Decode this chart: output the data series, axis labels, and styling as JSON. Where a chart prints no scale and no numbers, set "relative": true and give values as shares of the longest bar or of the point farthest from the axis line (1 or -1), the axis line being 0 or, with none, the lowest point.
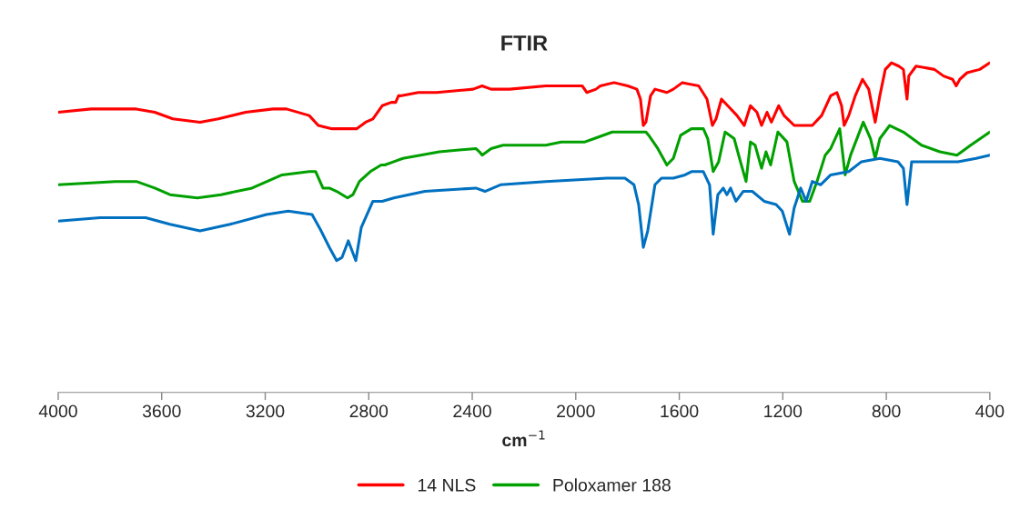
{
  "chart_data": {
    "type": "line",
    "title": "FTIR",
    "xlabel": "cm$^{−1}$",
    "relative": true,
    "xlim": [
      4000,
      400
    ],
    "xticks": [
      4000,
      3600,
      3200,
      2800,
      2400,
      2000,
      1600,
      1200,
      800,
      400
    ],
    "grid": false,
    "legend": "bottom",
    "marker": "none",
    "line_style": "solid",
    "series": [
      {
        "name": "14 NLS",
        "color": "#ff0000",
        "x": [
          4000,
          3873,
          3698,
          3627,
          3557,
          3452,
          3381,
          3276,
          3170,
          3118,
          3030,
          2995,
          2942,
          2847,
          2812,
          2784,
          2748,
          2713,
          2696,
          2685,
          2678,
          2608,
          2537,
          2397,
          2362,
          2327,
          2256,
          2116,
          1975,
          1957,
          1922,
          1905,
          1852,
          1799,
          1764,
          1750,
          1739,
          1729,
          1711,
          1694,
          1648,
          1623,
          1588,
          1525,
          1493,
          1472,
          1458,
          1437,
          1413,
          1377,
          1349,
          1325,
          1300,
          1282,
          1261,
          1244,
          1216,
          1195,
          1156,
          1086,
          1050,
          1015,
          991,
          973,
          963,
          945,
          920,
          892,
          868,
          843,
          825,
          804,
          780,
          752,
          734,
          720,
          713,
          685,
          614,
          579,
          544,
          530,
          516,
          488,
          439,
          400
        ],
        "values": [
          0.85,
          0.86,
          0.86,
          0.85,
          0.83,
          0.82,
          0.83,
          0.85,
          0.86,
          0.86,
          0.84,
          0.81,
          0.8,
          0.8,
          0.82,
          0.83,
          0.87,
          0.88,
          0.88,
          0.9,
          0.9,
          0.91,
          0.91,
          0.92,
          0.93,
          0.92,
          0.92,
          0.93,
          0.93,
          0.91,
          0.92,
          0.93,
          0.94,
          0.93,
          0.92,
          0.89,
          0.81,
          0.82,
          0.9,
          0.92,
          0.91,
          0.92,
          0.94,
          0.93,
          0.89,
          0.81,
          0.83,
          0.89,
          0.87,
          0.84,
          0.81,
          0.87,
          0.85,
          0.81,
          0.85,
          0.82,
          0.87,
          0.84,
          0.81,
          0.81,
          0.84,
          0.9,
          0.91,
          0.87,
          0.81,
          0.84,
          0.9,
          0.95,
          0.92,
          0.82,
          0.9,
          0.98,
          1.0,
          0.99,
          0.98,
          0.89,
          0.96,
          0.99,
          0.98,
          0.96,
          0.95,
          0.93,
          0.95,
          0.97,
          0.98,
          1.0
        ]
      },
      {
        "name": "Poloxamer 188",
        "color": "#00a000",
        "x": [
          4000,
          3779,
          3698,
          3627,
          3568,
          3462,
          3371,
          3251,
          3135,
          3030,
          3005,
          2977,
          2952,
          2924,
          2882,
          2861,
          2836,
          2794,
          2752,
          2738,
          2703,
          2668,
          2527,
          2386,
          2372,
          2362,
          2327,
          2281,
          2116,
          2056,
          1965,
          1929,
          1859,
          1729,
          1718,
          1683,
          1648,
          1623,
          1595,
          1553,
          1507,
          1490,
          1469,
          1448,
          1423,
          1388,
          1360,
          1342,
          1325,
          1307,
          1282,
          1265,
          1247,
          1219,
          1184,
          1156,
          1124,
          1096,
          1068,
          1036,
          1015,
          980,
          959,
          938,
          889,
          861,
          843,
          825,
          787,
          734,
          664,
          593,
          527,
          474,
          400
        ],
        "values": [
          0.63,
          0.64,
          0.64,
          0.62,
          0.6,
          0.59,
          0.6,
          0.62,
          0.66,
          0.67,
          0.67,
          0.62,
          0.62,
          0.61,
          0.59,
          0.6,
          0.64,
          0.67,
          0.69,
          0.69,
          0.7,
          0.71,
          0.73,
          0.74,
          0.73,
          0.72,
          0.74,
          0.75,
          0.75,
          0.76,
          0.76,
          0.77,
          0.79,
          0.79,
          0.78,
          0.74,
          0.69,
          0.71,
          0.78,
          0.8,
          0.8,
          0.77,
          0.67,
          0.7,
          0.79,
          0.77,
          0.69,
          0.64,
          0.76,
          0.75,
          0.68,
          0.73,
          0.69,
          0.79,
          0.76,
          0.64,
          0.58,
          0.58,
          0.64,
          0.72,
          0.74,
          0.8,
          0.66,
          0.72,
          0.82,
          0.77,
          0.71,
          0.77,
          0.81,
          0.79,
          0.75,
          0.73,
          0.72,
          0.75,
          0.79
        ]
      },
      {
        "color": "#0070c0",
        "x": [
          4000,
          3838,
          3662,
          3568,
          3452,
          3336,
          3195,
          3111,
          3019,
          2984,
          2952,
          2924,
          2903,
          2879,
          2850,
          2829,
          2784,
          2748,
          2703,
          2583,
          2386,
          2351,
          2291,
          2116,
          1880,
          1810,
          1775,
          1757,
          1739,
          1722,
          1694,
          1669,
          1623,
          1578,
          1553,
          1507,
          1483,
          1469,
          1451,
          1430,
          1416,
          1402,
          1381,
          1353,
          1318,
          1272,
          1226,
          1202,
          1174,
          1156,
          1131,
          1110,
          1086,
          1054,
          1015,
          945,
          896,
          825,
          755,
          734,
          720,
          702,
          629,
          523,
          453,
          400
        ],
        "values": [
          0.52,
          0.53,
          0.53,
          0.51,
          0.49,
          0.51,
          0.54,
          0.55,
          0.54,
          0.49,
          0.44,
          0.4,
          0.41,
          0.46,
          0.4,
          0.5,
          0.58,
          0.58,
          0.59,
          0.61,
          0.62,
          0.61,
          0.63,
          0.64,
          0.65,
          0.65,
          0.63,
          0.57,
          0.44,
          0.49,
          0.63,
          0.65,
          0.65,
          0.66,
          0.67,
          0.67,
          0.63,
          0.48,
          0.6,
          0.62,
          0.6,
          0.62,
          0.58,
          0.61,
          0.61,
          0.58,
          0.57,
          0.55,
          0.48,
          0.56,
          0.62,
          0.58,
          0.64,
          0.63,
          0.66,
          0.67,
          0.7,
          0.71,
          0.7,
          0.68,
          0.57,
          0.7,
          0.7,
          0.7,
          0.71,
          0.72
        ]
      }
    ]
  }
}
